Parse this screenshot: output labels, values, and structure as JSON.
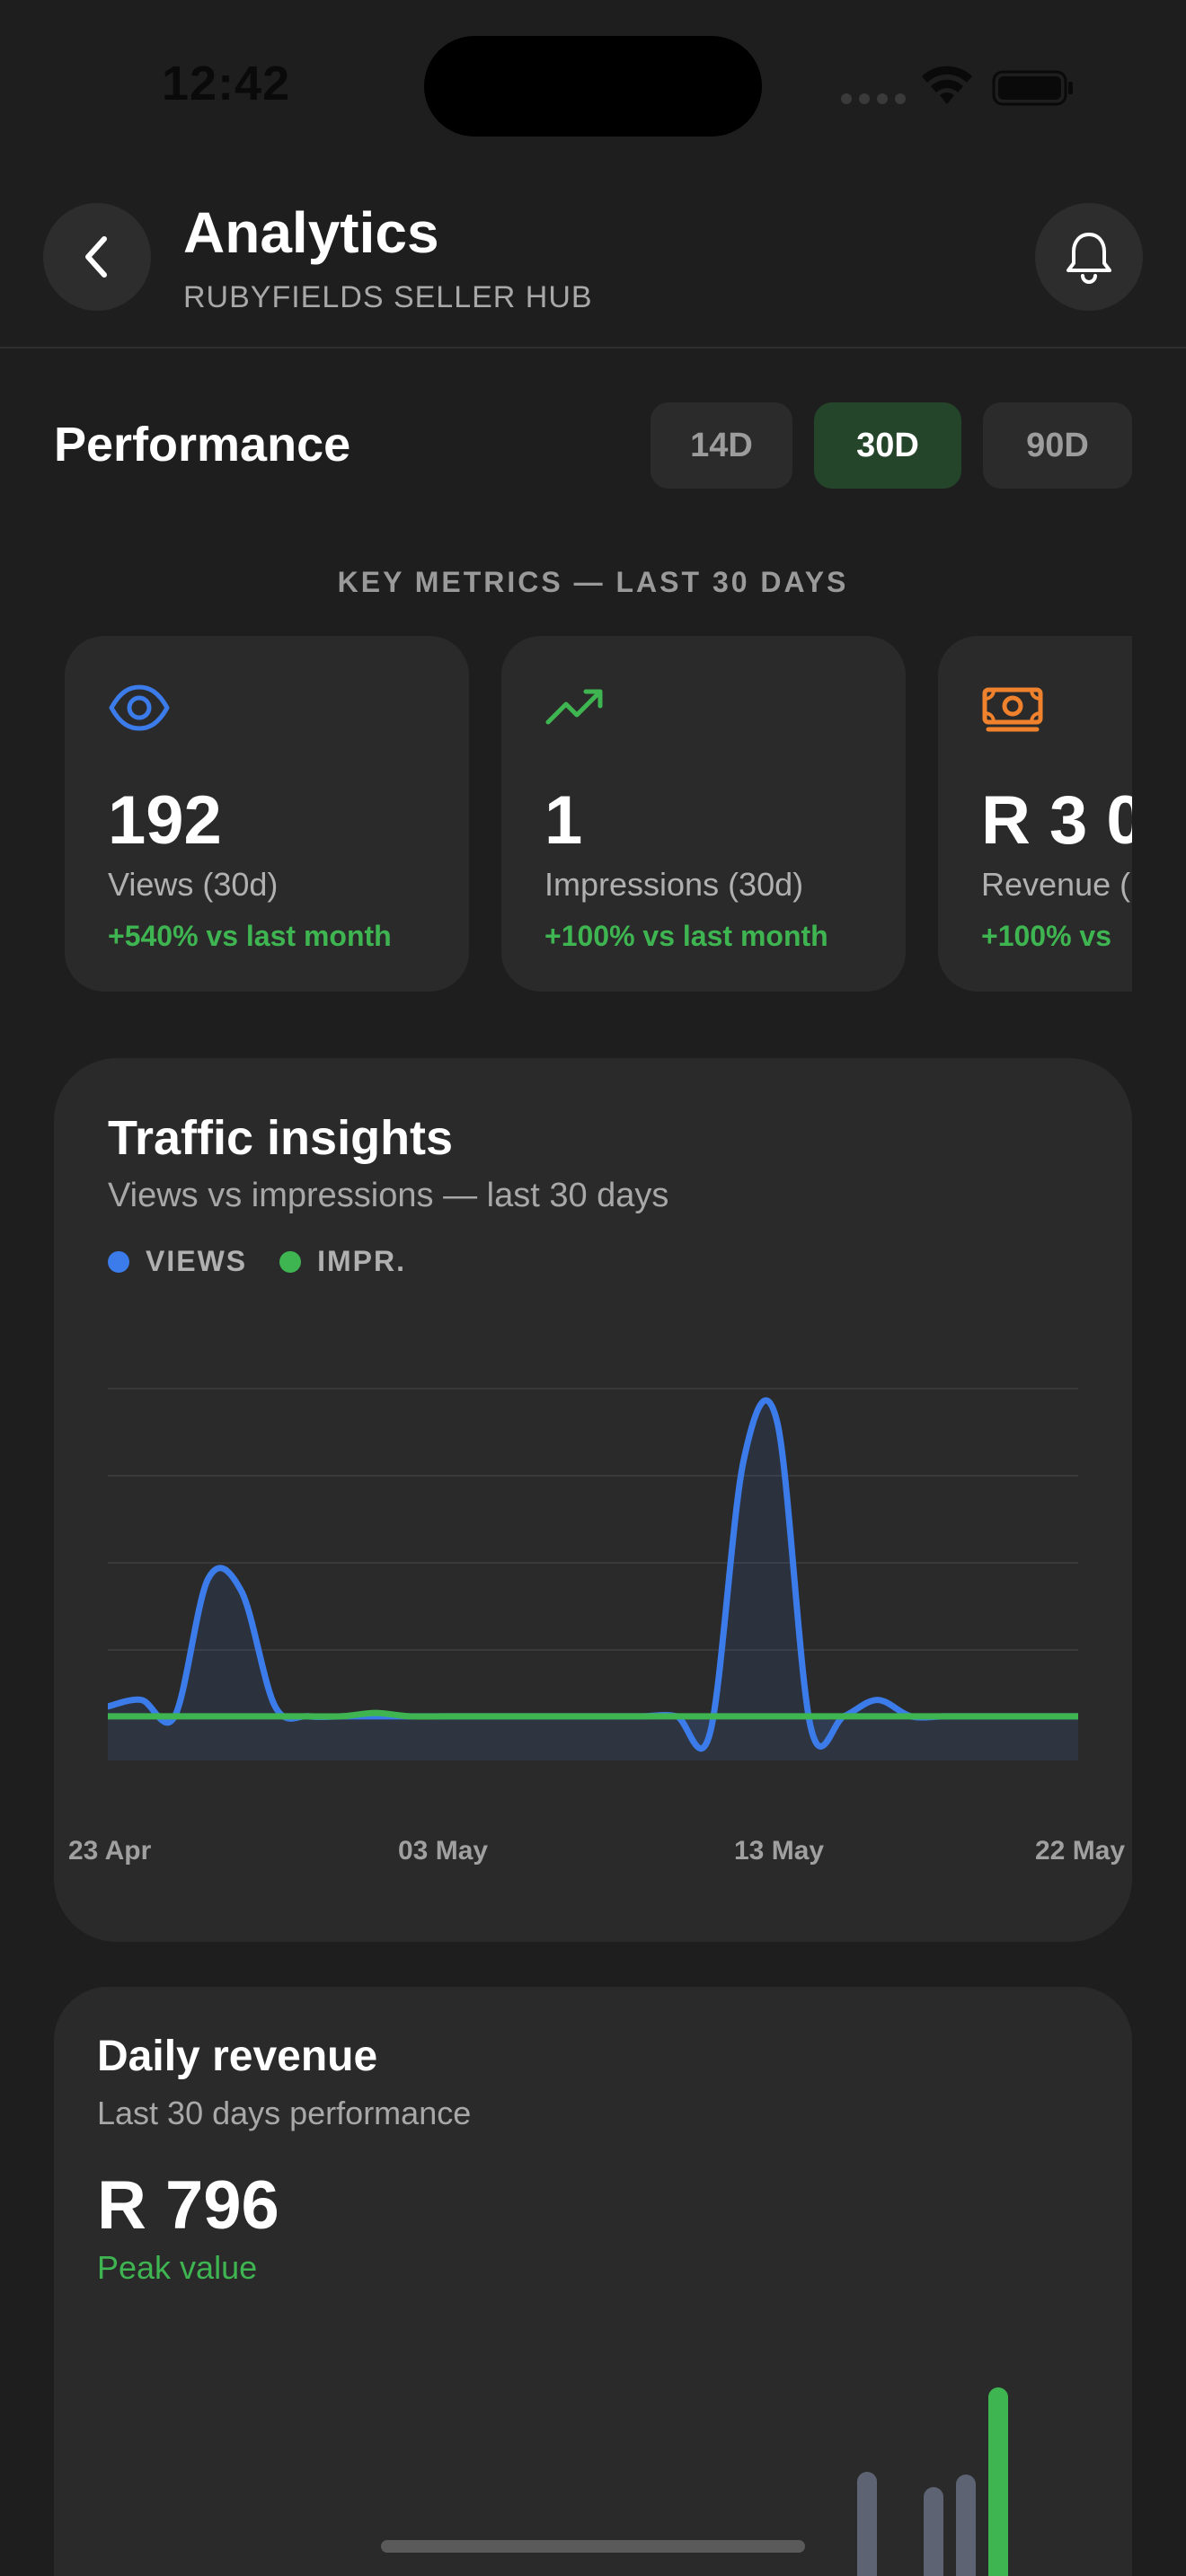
{
  "status_bar": {
    "time": "12:42"
  },
  "header": {
    "title": "Analytics",
    "subtitle": "RUBYFIELDS SELLER HUB",
    "back_icon": "chevron-left-icon",
    "bell_icon": "bell-icon"
  },
  "performance": {
    "title": "Performance",
    "ranges": [
      "14D",
      "30D",
      "90D"
    ],
    "selected_range": "30D"
  },
  "metrics": {
    "heading": "KEY METRICS — LAST 30 DAYS",
    "cards": [
      {
        "icon": "eye-icon",
        "value": "192",
        "label": "Views (30d)",
        "change": "+540% vs last month",
        "icon_color": "#3b7bea"
      },
      {
        "icon": "trending-up-icon",
        "value": "1",
        "label": "Impressions (30d)",
        "change": "+100% vs last month",
        "icon_color": "#3fb552"
      },
      {
        "icon": "banknote-icon",
        "value": "R 3 0",
        "label": "Revenue (",
        "change": "+100% vs",
        "icon_color": "#f0822d"
      }
    ]
  },
  "traffic": {
    "title": "Traffic insights",
    "subtitle": "Views vs impressions — last 30 days",
    "legend": [
      {
        "label": "VIEWS",
        "color": "#3b7bea"
      },
      {
        "label": "IMPR.",
        "color": "#3fb552"
      }
    ]
  },
  "chart_data": {
    "type": "line",
    "x": [
      "23 Apr",
      "24 Apr",
      "25 Apr",
      "26 Apr",
      "27 Apr",
      "28 Apr",
      "29 Apr",
      "30 Apr",
      "01 May",
      "02 May",
      "03 May",
      "04 May",
      "05 May",
      "06 May",
      "07 May",
      "08 May",
      "09 May",
      "10 May",
      "11 May",
      "12 May",
      "13 May",
      "14 May",
      "15 May",
      "16 May",
      "17 May",
      "18 May",
      "19 May",
      "20 May",
      "21 May",
      "22 May"
    ],
    "xticks": [
      "23 Apr",
      "03 May",
      "13 May",
      "22 May"
    ],
    "series": [
      {
        "name": "VIEWS",
        "color": "#3b7bea",
        "values": [
          3,
          5,
          0,
          42,
          38,
          3,
          0,
          0,
          0,
          0,
          0,
          0,
          0,
          0,
          0,
          0,
          0,
          0,
          -5,
          78,
          90,
          -3,
          0,
          5,
          0,
          0,
          0,
          0,
          0,
          0
        ]
      },
      {
        "name": "IMPR.",
        "color": "#3fb552",
        "values": [
          0,
          0,
          0,
          0,
          0,
          0,
          0,
          0,
          1,
          0,
          0,
          0,
          0,
          0,
          0,
          0,
          0,
          0,
          0,
          0,
          0,
          0,
          0,
          0,
          0,
          0,
          0,
          0,
          0,
          0
        ]
      }
    ],
    "ylim": [
      -8,
      100
    ],
    "grid": true
  },
  "revenue": {
    "title": "Daily revenue",
    "subtitle": "Last 30 days performance",
    "value": "R 796",
    "peak_label": "Peak value",
    "bars": [
      {
        "value": 0.55,
        "color": "#5d6372"
      },
      {
        "value": 0.0,
        "color": "#5d6372"
      },
      {
        "value": 0.47,
        "color": "#5d6372"
      },
      {
        "value": 0.54,
        "color": "#5d6372"
      },
      {
        "value": 1.0,
        "color": "#3fb552"
      }
    ]
  }
}
